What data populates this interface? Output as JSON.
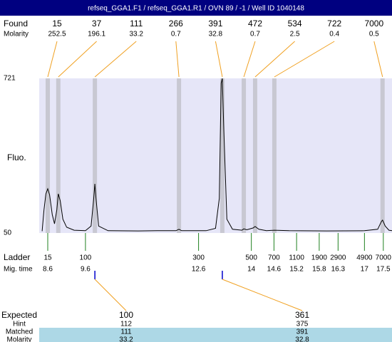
{
  "title": "refseq_GGA1.F1 / refseq_GGA1.R1 / OVN 89 / -1 / Well ID 1040148",
  "found_label": "Found",
  "molarity_label": "Molarity",
  "peaks": [
    {
      "size": 15,
      "molarity": 252.5,
      "mig_time": 8.6
    },
    {
      "size": 37,
      "molarity": 196.1,
      "mig_time": 8.88
    },
    {
      "size": 111,
      "molarity": 33.2,
      "mig_time": 9.85
    },
    {
      "size": 266,
      "molarity": 0.7,
      "mig_time": 12.08
    },
    {
      "size": 391,
      "molarity": 32.8,
      "mig_time": 13.23
    },
    {
      "size": 472,
      "molarity": 0.7,
      "mig_time": 13.8
    },
    {
      "size": 534,
      "molarity": 2.5,
      "mig_time": 14.1
    },
    {
      "size": 722,
      "molarity": 0.4,
      "mig_time": 14.61
    },
    {
      "size": 7000,
      "molarity": 0.5,
      "mig_time": 17.48
    }
  ],
  "fluo_label": "Fluo.",
  "ylim": [
    50,
    721
  ],
  "yticks": [
    50,
    721
  ],
  "trace": {
    "mig_time": [
      8.45,
      8.5,
      8.55,
      8.6,
      8.65,
      8.72,
      8.78,
      8.84,
      8.88,
      8.93,
      9.0,
      9.1,
      9.3,
      9.6,
      9.75,
      9.82,
      9.85,
      9.88,
      9.95,
      10.2,
      11.0,
      11.5,
      12.0,
      12.08,
      12.15,
      12.8,
      13.05,
      13.15,
      13.2,
      13.23,
      13.27,
      13.35,
      13.5,
      13.75,
      13.8,
      13.88,
      14.05,
      14.1,
      14.2,
      14.4,
      14.61,
      15.0,
      16.0,
      17.0,
      17.35,
      17.45,
      17.48,
      17.55,
      17.65,
      17.73
    ],
    "fluo": [
      58,
      150,
      220,
      242,
      215,
      130,
      90,
      150,
      220,
      190,
      110,
      75,
      62,
      60,
      80,
      200,
      263,
      200,
      80,
      60,
      59,
      60,
      60,
      66,
      60,
      60,
      70,
      200,
      700,
      721,
      500,
      110,
      66,
      62,
      68,
      64,
      72,
      78,
      66,
      60,
      62,
      60,
      59,
      60,
      66,
      100,
      106,
      80,
      62,
      60
    ]
  },
  "ladder_label": "Ladder",
  "mig_time_label": "Mig. time",
  "ladder": [
    {
      "size": 15,
      "mig_time": 8.6
    },
    {
      "size": 100,
      "mig_time": 9.6
    },
    {
      "size": 300,
      "mig_time": 12.6
    },
    {
      "size": 500,
      "mig_time": 14
    },
    {
      "size": 700,
      "mig_time": 14.6
    },
    {
      "size": 1100,
      "mig_time": 15.2
    },
    {
      "size": 1900,
      "mig_time": 15.8
    },
    {
      "size": 2900,
      "mig_time": 16.3
    },
    {
      "size": 4900,
      "mig_time": 17
    },
    {
      "size": 7000,
      "mig_time": 17.5
    }
  ],
  "expected": {
    "label": "Expected",
    "hint_label": "Hint",
    "matched_label": "Matched",
    "molarity_label": "Molarity",
    "items": [
      {
        "expected": 100,
        "hint": 112,
        "matched": 111,
        "molarity": 33.2
      },
      {
        "expected": 361,
        "hint": 375,
        "matched": 391,
        "molarity": 32.8
      }
    ]
  }
}
